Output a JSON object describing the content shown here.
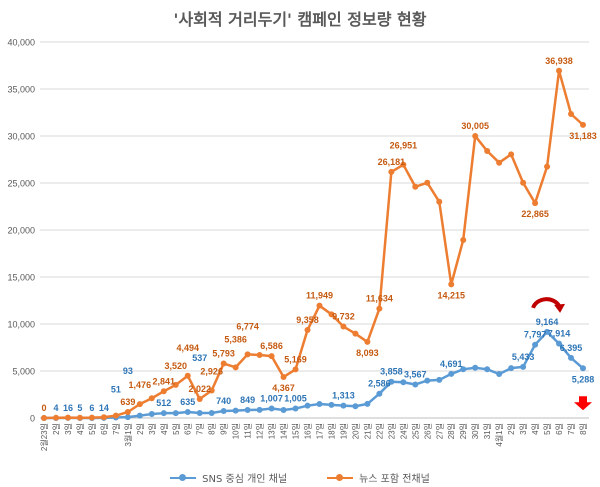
{
  "chart_data": {
    "type": "line",
    "title": "'사회적 거리두기' 캠페인 정보량 현황",
    "xlabel": "",
    "ylabel": "",
    "ylim": [
      0,
      40000
    ],
    "yticks": [
      "0",
      "5,000",
      "10,000",
      "15,000",
      "20,000",
      "25,000",
      "30,000",
      "35,000",
      "40,000"
    ],
    "grid": true,
    "legend_placement": "bottom",
    "categories": [
      "2월23일",
      "2일",
      "3일",
      "4일",
      "5일",
      "6일",
      "7일",
      "3월1일",
      "2일",
      "3일",
      "4일",
      "5일",
      "6일",
      "7일",
      "8일",
      "9일",
      "10일",
      "11일",
      "12일",
      "13일",
      "14일",
      "15일",
      "16일",
      "17일",
      "18일",
      "19일",
      "20일",
      "21일",
      "22일",
      "23일",
      "24일",
      "25일",
      "26일",
      "27일",
      "28일",
      "29일",
      "30일",
      "31일",
      "4월1일",
      "2일",
      "3일",
      "4일",
      "5일",
      "6일",
      "7일",
      "8일"
    ],
    "series": [
      {
        "name": "SNS 중심 개인 채널",
        "color": "#5B9BD5",
        "values": [
          0,
          4,
          16,
          5,
          6,
          14,
          51,
          93,
          250,
          420,
          512,
          520,
          635,
          537,
          530,
          740,
          790,
          849,
          870,
          1007,
          850,
          1005,
          1310,
          1490,
          1400,
          1313,
          1250,
          1500,
          2586,
          3858,
          3800,
          3567,
          3980,
          4050,
          4691,
          5180,
          5350,
          5180,
          4680,
          5300,
          5433,
          7797,
          9164,
          7914,
          6395,
          5288
        ],
        "labeled_points": [
          1,
          2,
          3,
          4,
          5,
          6,
          7,
          10,
          12,
          13,
          15,
          17,
          19,
          21,
          25,
          28,
          29,
          31,
          34,
          40,
          41,
          42,
          43,
          44,
          45
        ],
        "data_labels": [
          "4",
          "16",
          "5",
          "6",
          "14",
          "51",
          "93",
          "512",
          "635",
          "537",
          "740",
          "849",
          "1,007",
          "1,005",
          "1,313",
          "2,586",
          "3,858",
          "3,567",
          "4,691",
          "5,433",
          "7,797",
          "9,164",
          "7,914",
          "6,395",
          "5,288"
        ]
      },
      {
        "name": "뉴스 포함 전채널",
        "color": "#ED7D31",
        "values": [
          0,
          20,
          40,
          30,
          40,
          80,
          250,
          639,
          1476,
          2100,
          2841,
          3520,
          4494,
          2022,
          2926,
          5793,
          5386,
          6774,
          6700,
          6586,
          4367,
          5169,
          9358,
          11949,
          11030,
          9732,
          8970,
          8093,
          11634,
          26181,
          26951,
          24600,
          25030,
          23000,
          14215,
          18940,
          30005,
          28400,
          27160,
          28050,
          25030,
          22865,
          26740,
          36938,
          32340,
          31183
        ],
        "labeled_points": [
          0,
          7,
          8,
          10,
          11,
          12,
          13,
          14,
          15,
          16,
          17,
          19,
          20,
          21,
          22,
          23,
          25,
          27,
          28,
          29,
          30,
          34,
          36,
          41,
          43,
          45
        ],
        "data_labels": [
          "0",
          "639",
          "1,476",
          "2,841",
          "3,520",
          "4,494",
          "2,022",
          "2,926",
          "5,793",
          "5,386",
          "6,774",
          "6,586",
          "4,367",
          "5,169",
          "9,358",
          "11,949",
          "9,732",
          "8,093",
          "11,634",
          "26,181",
          "26,951",
          "14,215",
          "30,005",
          "22,865",
          "36,938",
          "31,183"
        ]
      }
    ],
    "annotations": [
      {
        "type": "curved-arrow-icon",
        "color": "#C00000",
        "at_point": 42
      },
      {
        "type": "down-arrow-icon",
        "color": "#FF0000",
        "at_point": 45
      }
    ]
  }
}
